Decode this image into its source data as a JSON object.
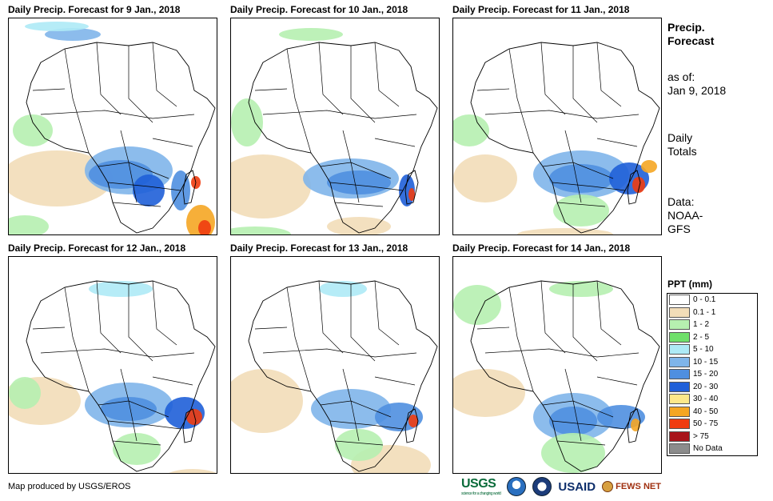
{
  "panels": [
    {
      "title": "Daily Precip. Forecast for 9 Jan., 2018"
    },
    {
      "title": "Daily Precip. Forecast for 10 Jan., 2018"
    },
    {
      "title": "Daily Precip. Forecast for 11 Jan., 2018"
    },
    {
      "title": "Daily Precip. Forecast for 12 Jan., 2018"
    },
    {
      "title": "Daily Precip. Forecast for 13 Jan., 2018"
    },
    {
      "title": "Daily Precip. Forecast for 14 Jan., 2018"
    }
  ],
  "side": {
    "title_line1": "Precip.",
    "title_line2": "Forecast",
    "asof_line1": "as of:",
    "asof_line2": "Jan 9, 2018",
    "totals_line1": "Daily",
    "totals_line2": "Totals",
    "data_line1": "Data:",
    "data_line2": "NOAA-",
    "data_line3": "GFS"
  },
  "legend": {
    "title": "PPT (mm)",
    "items": [
      {
        "label": "0 - 0.1",
        "color": "#ffffff"
      },
      {
        "label": "0.1 - 1",
        "color": "#f2ddb8"
      },
      {
        "label": "1 - 2",
        "color": "#b6f0b0"
      },
      {
        "label": "2 - 5",
        "color": "#6fe06a"
      },
      {
        "label": "5 - 10",
        "color": "#aeeaf6"
      },
      {
        "label": "10 - 15",
        "color": "#7fb5ea"
      },
      {
        "label": "15 - 20",
        "color": "#4f8fe0"
      },
      {
        "label": "20 - 30",
        "color": "#1f5fd8"
      },
      {
        "label": "30 - 40",
        "color": "#fde88a"
      },
      {
        "label": "40 - 50",
        "color": "#f5a623"
      },
      {
        "label": "50 - 75",
        "color": "#f03c10"
      },
      {
        "label": "> 75",
        "color": "#a8141a"
      },
      {
        "label": "No Data",
        "color": "#8c8c8c"
      }
    ]
  },
  "footer": {
    "credit": "Map produced by USGS/EROS"
  },
  "logos": {
    "usgs": "USGS",
    "usgs_tagline": "science for a changing world",
    "usaid": "USAID",
    "fews": "FEWS NET"
  }
}
